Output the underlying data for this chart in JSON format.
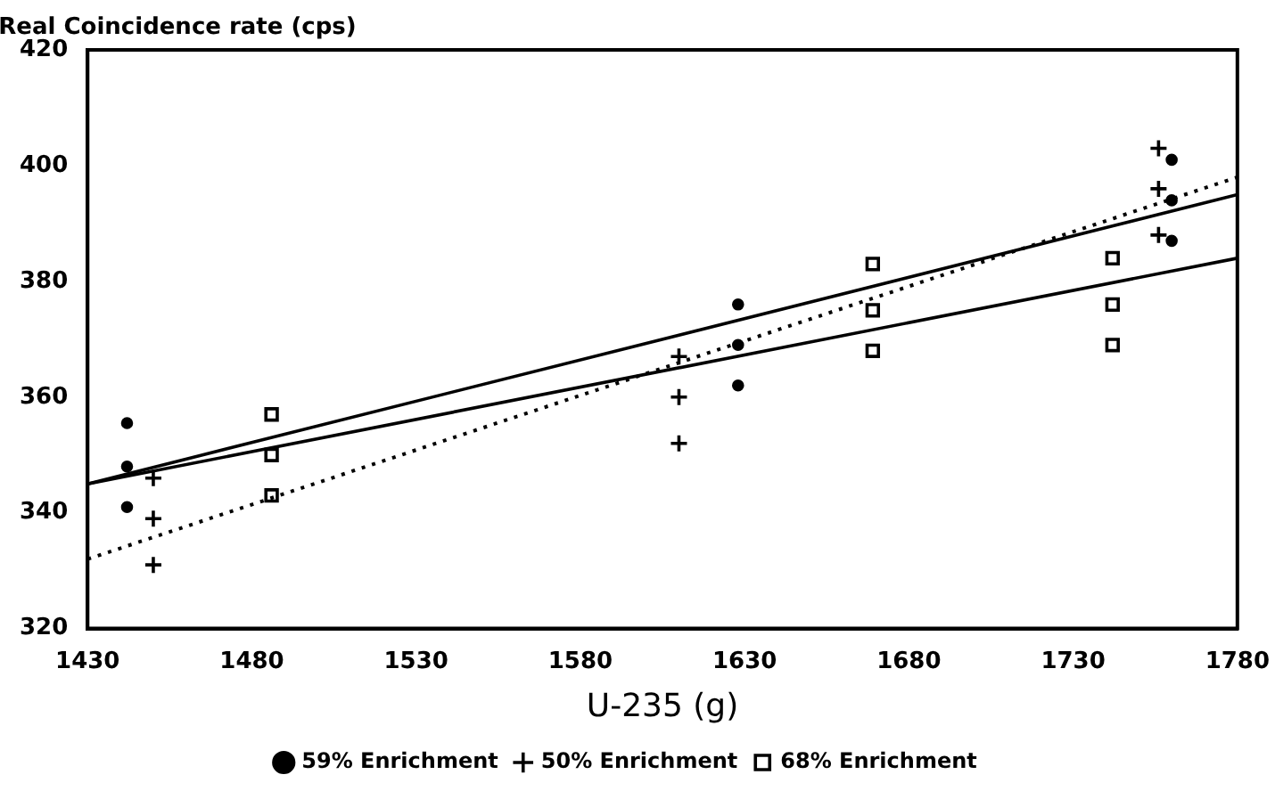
{
  "chart_data": {
    "type": "scatter",
    "ylabel": "Real Coincidence rate (cps)",
    "xlabel": "U-235 (g)",
    "xlim": [
      1430,
      1780
    ],
    "xticks": [
      1430,
      1480,
      1530,
      1580,
      1630,
      1680,
      1730,
      1780
    ],
    "ylim": [
      320,
      420
    ],
    "yticks": [
      320,
      340,
      360,
      380,
      400,
      420
    ],
    "grid": false,
    "legend": "bottom",
    "series": [
      {
        "name": "59% Enrichment",
        "marker": "circle",
        "color": "#000000",
        "x": [
          1442,
          1442,
          1442,
          1628,
          1628,
          1628,
          1760,
          1760,
          1760
        ],
        "values": [
          355.5,
          348,
          341,
          376,
          369,
          362,
          401,
          394,
          387
        ]
      },
      {
        "name": "50% Enrichment",
        "marker": "cross",
        "color": "#000000",
        "x": [
          1450,
          1450,
          1450,
          1610,
          1610,
          1610,
          1756,
          1756,
          1756
        ],
        "values": [
          346,
          339,
          331,
          367,
          360,
          352,
          403,
          396,
          388
        ]
      },
      {
        "name": "68% Enrichment",
        "marker": "square",
        "color": "#000000",
        "x": [
          1486,
          1486,
          1486,
          1669,
          1669,
          1669,
          1742,
          1742,
          1742
        ],
        "values": [
          357,
          350,
          343,
          383,
          375,
          368,
          384,
          376,
          369
        ]
      },
      {
        "type": "line",
        "line_style": "solid",
        "color": "#000000",
        "x": [
          1430,
          1780
        ],
        "values": [
          345,
          395
        ]
      },
      {
        "type": "line",
        "line_style": "dotted",
        "color": "#000000",
        "x": [
          1430,
          1780
        ],
        "values": [
          332,
          398
        ]
      },
      {
        "type": "line",
        "line_style": "solid",
        "color": "#000000",
        "x": [
          1430,
          1780
        ],
        "values": [
          345,
          384
        ]
      }
    ]
  }
}
